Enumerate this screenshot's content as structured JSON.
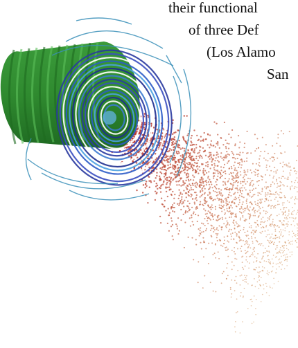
{
  "text_lines": [
    "their functional",
    "of three Def",
    "(Los Alamo",
    "San"
  ]
}
